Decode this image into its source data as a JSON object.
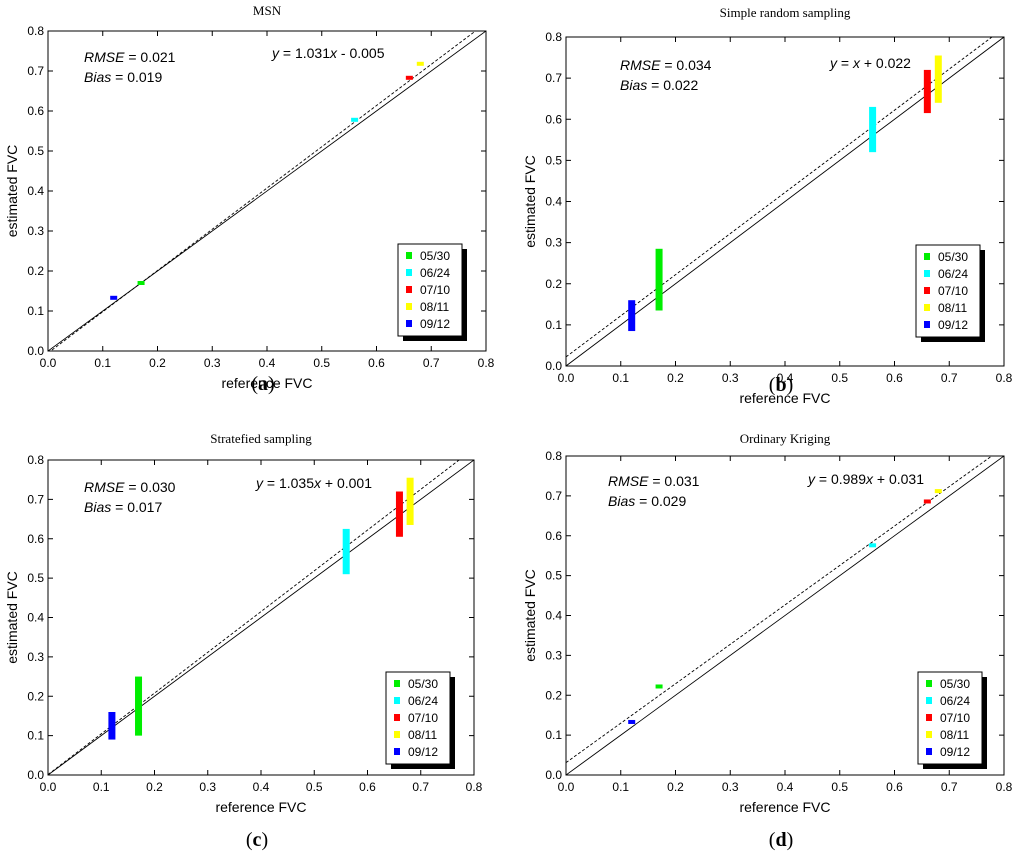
{
  "chart_data": [
    {
      "type": "scatter",
      "title": "MSN",
      "caption": "a",
      "xlabel": "reference FVC",
      "ylabel": "estimated FVC",
      "xlim": [
        0,
        0.8
      ],
      "ylim": [
        0,
        0.8
      ],
      "x_ticks": [
        "0.0",
        "0.1",
        "0.2",
        "0.3",
        "0.4",
        "0.5",
        "0.6",
        "0.7",
        "0.8"
      ],
      "y_ticks": [
        "0.0",
        "0.1",
        "0.2",
        "0.3",
        "0.4",
        "0.5",
        "0.6",
        "0.7",
        "0.8"
      ],
      "rmse_label": "RMSE",
      "rmse_value": " = 0.021",
      "bias_label": "Bias",
      "bias_value": " = 0.019",
      "equation_y": "y",
      "equation_rest": " = 1.031",
      "equation_x": "x",
      "equation_tail": " - 0.005",
      "fit": {
        "slope": 1.031,
        "intercept": -0.005
      },
      "series": [
        {
          "name": "05/30",
          "color": "#00ee00",
          "x": 0.17,
          "ymin": 0.165,
          "ymax": 0.175
        },
        {
          "name": "06/24",
          "color": "#00ffff",
          "x": 0.56,
          "ymin": 0.573,
          "ymax": 0.583
        },
        {
          "name": "07/10",
          "color": "#ff0000",
          "x": 0.66,
          "ymin": 0.678,
          "ymax": 0.688
        },
        {
          "name": "08/11",
          "color": "#ffff00",
          "x": 0.68,
          "ymin": 0.713,
          "ymax": 0.723
        },
        {
          "name": "09/12",
          "color": "#0000ff",
          "x": 0.12,
          "ymin": 0.128,
          "ymax": 0.138
        }
      ]
    },
    {
      "type": "scatter",
      "title": "Simple random sampling",
      "caption": "b",
      "xlabel": "reference FVC",
      "ylabel": "estimated FVC",
      "xlim": [
        0,
        0.8
      ],
      "ylim": [
        0,
        0.8
      ],
      "x_ticks": [
        "0.0",
        "0.1",
        "0.2",
        "0.3",
        "0.4",
        "0.5",
        "0.6",
        "0.7",
        "0.8"
      ],
      "y_ticks": [
        "0.0",
        "0.1",
        "0.2",
        "0.3",
        "0.4",
        "0.5",
        "0.6",
        "0.7",
        "0.8"
      ],
      "rmse_label": "RMSE",
      "rmse_value": " = 0.034",
      "bias_label": "Bias",
      "bias_value": " = 0.022",
      "equation_y": "y",
      "equation_rest": " = ",
      "equation_x": "x",
      "equation_tail": " + 0.022",
      "fit": {
        "slope": 1.0,
        "intercept": 0.022
      },
      "series": [
        {
          "name": "05/30",
          "color": "#00ee00",
          "x": 0.17,
          "ymin": 0.135,
          "ymax": 0.285
        },
        {
          "name": "06/24",
          "color": "#00ffff",
          "x": 0.56,
          "ymin": 0.52,
          "ymax": 0.63
        },
        {
          "name": "07/10",
          "color": "#ff0000",
          "x": 0.66,
          "ymin": 0.615,
          "ymax": 0.72
        },
        {
          "name": "08/11",
          "color": "#ffff00",
          "x": 0.68,
          "ymin": 0.64,
          "ymax": 0.755
        },
        {
          "name": "09/12",
          "color": "#0000ff",
          "x": 0.12,
          "ymin": 0.085,
          "ymax": 0.16
        }
      ]
    },
    {
      "type": "scatter",
      "title": "Stratefied sampling",
      "caption": "c",
      "xlabel": "reference FVC",
      "ylabel": "estimated FVC",
      "xlim": [
        0,
        0.8
      ],
      "ylim": [
        0,
        0.8
      ],
      "x_ticks": [
        "0.0",
        "0.1",
        "0.2",
        "0.3",
        "0.4",
        "0.5",
        "0.6",
        "0.7",
        "0.8"
      ],
      "y_ticks": [
        "0.0",
        "0.1",
        "0.2",
        "0.3",
        "0.4",
        "0.5",
        "0.6",
        "0.7",
        "0.8"
      ],
      "rmse_label": "RMSE",
      "rmse_value": " = 0.030",
      "bias_label": "Bias",
      "bias_value": " = 0.017",
      "equation_y": "y",
      "equation_rest": " = 1.035",
      "equation_x": "x",
      "equation_tail": " + 0.001",
      "fit": {
        "slope": 1.035,
        "intercept": 0.001
      },
      "series": [
        {
          "name": "05/30",
          "color": "#00ee00",
          "x": 0.17,
          "ymin": 0.1,
          "ymax": 0.25
        },
        {
          "name": "06/24",
          "color": "#00ffff",
          "x": 0.56,
          "ymin": 0.51,
          "ymax": 0.625
        },
        {
          "name": "07/10",
          "color": "#ff0000",
          "x": 0.66,
          "ymin": 0.605,
          "ymax": 0.72
        },
        {
          "name": "08/11",
          "color": "#ffff00",
          "x": 0.68,
          "ymin": 0.635,
          "ymax": 0.755
        },
        {
          "name": "09/12",
          "color": "#0000ff",
          "x": 0.12,
          "ymin": 0.09,
          "ymax": 0.16
        }
      ]
    },
    {
      "type": "scatter",
      "title": "Ordinary Kriging",
      "caption": "d",
      "xlabel": "reference FVC",
      "ylabel": "estimated FVC",
      "xlim": [
        0,
        0.8
      ],
      "ylim": [
        0,
        0.8
      ],
      "x_ticks": [
        "0.0",
        "0.1",
        "0.2",
        "0.3",
        "0.4",
        "0.5",
        "0.6",
        "0.7",
        "0.8"
      ],
      "y_ticks": [
        "0.0",
        "0.1",
        "0.2",
        "0.3",
        "0.4",
        "0.5",
        "0.6",
        "0.7",
        "0.8"
      ],
      "rmse_label": "RMSE",
      "rmse_value": " = 0.031",
      "bias_label": "Bias",
      "bias_value": " = 0.029",
      "equation_y": "y",
      "equation_rest": " = 0.989",
      "equation_x": "x",
      "equation_tail": " + 0.031",
      "fit": {
        "slope": 0.989,
        "intercept": 0.031
      },
      "series": [
        {
          "name": "05/30",
          "color": "#00ee00",
          "x": 0.17,
          "ymin": 0.217,
          "ymax": 0.227
        },
        {
          "name": "06/24",
          "color": "#00ffff",
          "x": 0.56,
          "ymin": 0.571,
          "ymax": 0.581
        },
        {
          "name": "07/10",
          "color": "#ff0000",
          "x": 0.66,
          "ymin": 0.681,
          "ymax": 0.691
        },
        {
          "name": "08/11",
          "color": "#ffff00",
          "x": 0.68,
          "ymin": 0.707,
          "ymax": 0.717
        },
        {
          "name": "09/12",
          "color": "#0000ff",
          "x": 0.12,
          "ymin": 0.128,
          "ymax": 0.138
        }
      ]
    }
  ]
}
